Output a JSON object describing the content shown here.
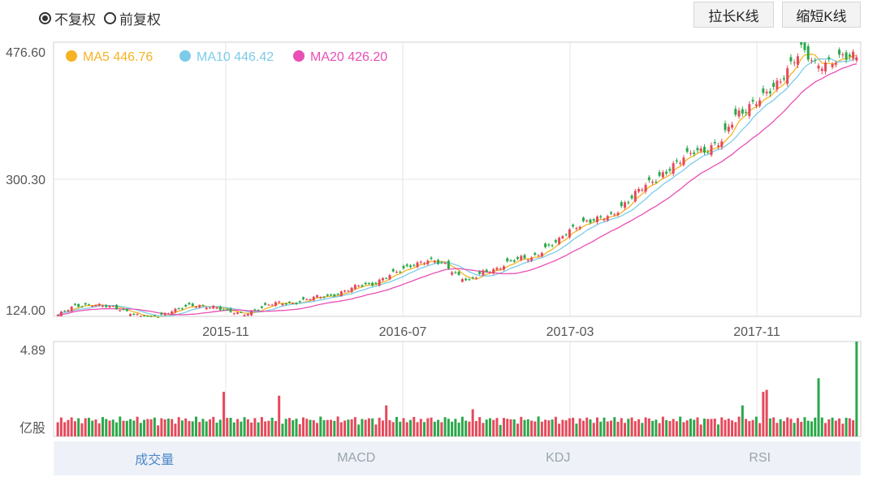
{
  "controls": {
    "adjust_options": [
      {
        "label": "不复权",
        "selected": true
      },
      {
        "label": "前复权",
        "selected": false
      }
    ],
    "stretch_label": "拉长K线",
    "shrink_label": "缩短K线"
  },
  "indicator_tabs": [
    {
      "label": "成交量",
      "active": true
    },
    {
      "label": "MACD",
      "active": false
    },
    {
      "label": "KDJ",
      "active": false
    },
    {
      "label": "RSI",
      "active": false
    }
  ],
  "colors": {
    "up": "#e5495b",
    "down": "#2aa84a",
    "ma5": "#f5b324",
    "ma10": "#7ccbe8",
    "ma20": "#e94fb5",
    "grid": "#e6e6e6",
    "axis": "#d0d0d0"
  },
  "chart_data": [
    {
      "type": "candlestick",
      "title": "",
      "legend": [
        {
          "name": "MA5",
          "value": "446.76"
        },
        {
          "name": "MA10",
          "value": "446.42"
        },
        {
          "name": "MA20",
          "value": "426.20"
        }
      ],
      "y_ticks": [
        "476.60",
        "300.30",
        "124.00"
      ],
      "ylim": [
        124.0,
        476.6
      ],
      "x_ticks": [
        "2015-11",
        "2016-07",
        "2017-03",
        "2017-11"
      ],
      "grid": true,
      "legend_position": "top-left",
      "price_anchors": [
        [
          0,
          126
        ],
        [
          5,
          137
        ],
        [
          10,
          140
        ],
        [
          16,
          135
        ],
        [
          20,
          131
        ],
        [
          24,
          124
        ],
        [
          28,
          121
        ],
        [
          33,
          132
        ],
        [
          38,
          137
        ],
        [
          45,
          137
        ],
        [
          50,
          129
        ],
        [
          54,
          127
        ],
        [
          58,
          134
        ],
        [
          63,
          141
        ],
        [
          68,
          141
        ],
        [
          74,
          148
        ],
        [
          78,
          150
        ],
        [
          82,
          155
        ],
        [
          87,
          163
        ],
        [
          91,
          166
        ],
        [
          95,
          175
        ],
        [
          99,
          182
        ],
        [
          103,
          192
        ],
        [
          107,
          196
        ],
        [
          112,
          190
        ],
        [
          115,
          180
        ],
        [
          119,
          169
        ],
        [
          123,
          180
        ],
        [
          127,
          186
        ],
        [
          130,
          193
        ],
        [
          134,
          198
        ],
        [
          137,
          199
        ],
        [
          141,
          212
        ],
        [
          145,
          221
        ],
        [
          148,
          235
        ],
        [
          152,
          246
        ],
        [
          156,
          248
        ],
        [
          160,
          253
        ],
        [
          164,
          270
        ],
        [
          168,
          285
        ],
        [
          172,
          298
        ],
        [
          176,
          312
        ],
        [
          180,
          323
        ],
        [
          184,
          337
        ],
        [
          188,
          340
        ],
        [
          192,
          348
        ],
        [
          196,
          383
        ],
        [
          200,
          396
        ],
        [
          204,
          404
        ],
        [
          208,
          423
        ],
        [
          212,
          450
        ],
        [
          215,
          466
        ],
        [
          219,
          447
        ],
        [
          223,
          453
        ],
        [
          226,
          455
        ],
        [
          230,
          457
        ]
      ],
      "ma5_last": 446.76,
      "ma10_last": 446.42,
      "ma20_last": 426.2
    },
    {
      "type": "bar",
      "title": "",
      "y_ticks": [
        "4.89",
        "亿股"
      ],
      "ylim": [
        0,
        4.89
      ],
      "unit": "亿股",
      "volume_profile": "baseline 0.5-0.9 with spikes of about 1.4-2.3, peak 4.89 at the last bar"
    }
  ]
}
